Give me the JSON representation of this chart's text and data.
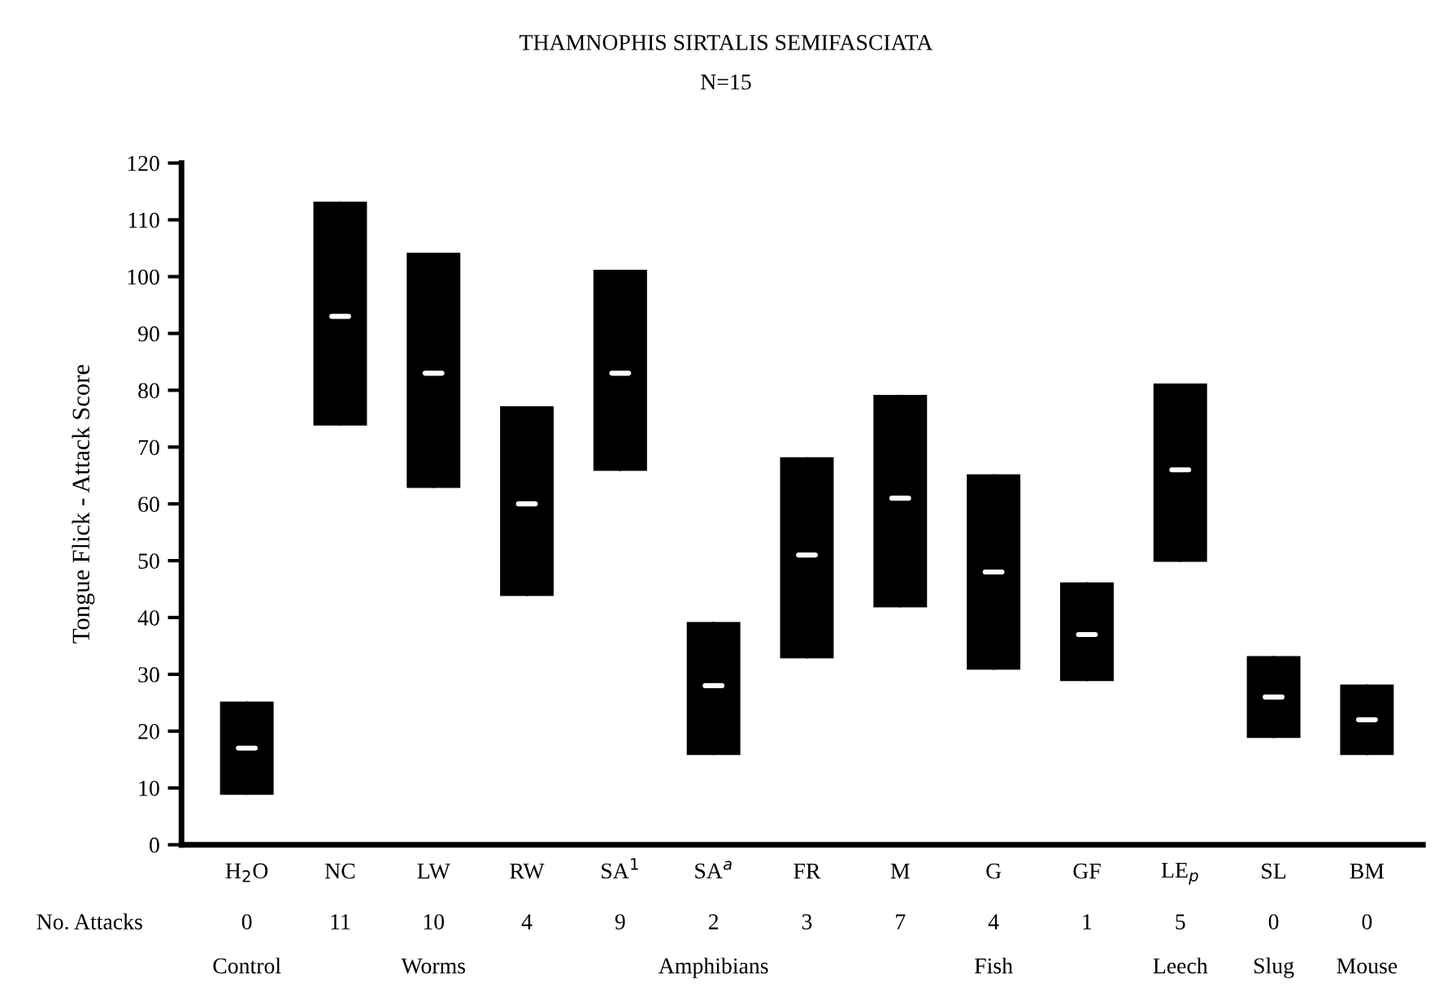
{
  "chart_data": {
    "type": "box",
    "title": "THAMNOPHIS SIRTALIS SEMIFASCIATA",
    "subtitle": "N=15",
    "ylabel": "Tongue Flick - Attack Score",
    "categories": [
      "H$_{2}$O",
      "NC",
      "LW",
      "RW",
      "SA$^{1}$",
      "SA$^{a}$",
      "FR",
      "M",
      "G",
      "GF",
      "LE$_{p}$",
      "SL",
      "BM"
    ],
    "color": "#000000",
    "boxes": [
      {
        "low": 9,
        "q1": 9,
        "median": 17,
        "q3": 25,
        "high": 25
      },
      {
        "low": 74,
        "q1": 74,
        "median": 93,
        "q3": 113,
        "high": 113
      },
      {
        "low": 63,
        "q1": 63,
        "median": 83,
        "q3": 104,
        "high": 104
      },
      {
        "low": 44,
        "q1": 44,
        "median": 60,
        "q3": 77,
        "high": 77
      },
      {
        "low": 66,
        "q1": 66,
        "median": 83,
        "q3": 101,
        "high": 101
      },
      {
        "low": 16,
        "q1": 16,
        "median": 28,
        "q3": 39,
        "high": 39
      },
      {
        "low": 33,
        "q1": 33,
        "median": 51,
        "q3": 68,
        "high": 68
      },
      {
        "low": 42,
        "q1": 42,
        "median": 61,
        "q3": 79,
        "high": 79
      },
      {
        "low": 31,
        "q1": 31,
        "median": 48,
        "q3": 65,
        "high": 65
      },
      {
        "low": 29,
        "q1": 29,
        "median": 37,
        "q3": 46,
        "high": 46
      },
      {
        "low": 50,
        "q1": 50,
        "median": 66,
        "q3": 81,
        "high": 81
      },
      {
        "low": 19,
        "q1": 19,
        "median": 26,
        "q3": 33,
        "high": 33
      },
      {
        "low": 16,
        "q1": 16,
        "median": 22,
        "q3": 28,
        "high": 28
      }
    ],
    "ylim": [
      0,
      120
    ],
    "yticks": [
      0,
      10,
      20,
      30,
      40,
      50,
      60,
      70,
      80,
      90,
      100,
      110,
      120
    ],
    "grid": false,
    "annotations": [
      "No. Attacks",
      "0",
      "11",
      "10",
      "4",
      "9",
      "2",
      "3",
      "7",
      "4",
      "1",
      "5",
      "0",
      "0",
      "Control",
      "Worms",
      "Amphibians",
      "Fish",
      "Leech",
      "Slug",
      "Mouse"
    ]
  }
}
